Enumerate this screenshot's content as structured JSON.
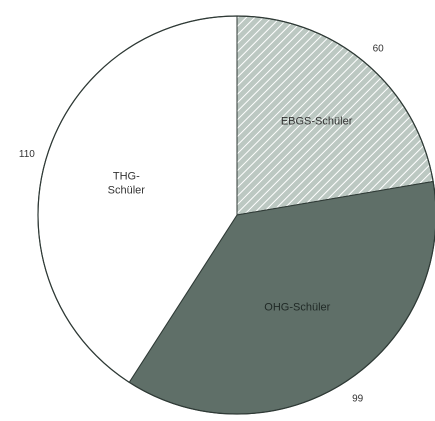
{
  "chart_data": {
    "type": "pie",
    "categories": [
      "EBGS-Schüler",
      "OHG-Schüler",
      "THG-Schüler"
    ],
    "values": [
      60,
      99,
      110
    ],
    "category_lines": [
      [
        "EBGS-Schüler"
      ],
      [
        "OHG-Schüler"
      ],
      [
        "THG-",
        "Schüler"
      ]
    ],
    "colors": {
      "EBGS-Schüler": "#bcc8c2",
      "OHG-Schüler": "#5f6f68",
      "THG-Schüler": "#ffffff"
    },
    "pattern": {
      "EBGS-Schüler": "diagonal-hatch"
    },
    "start": "top",
    "direction": "clockwise",
    "legend": "none",
    "outline_color": "#2f3a36"
  }
}
